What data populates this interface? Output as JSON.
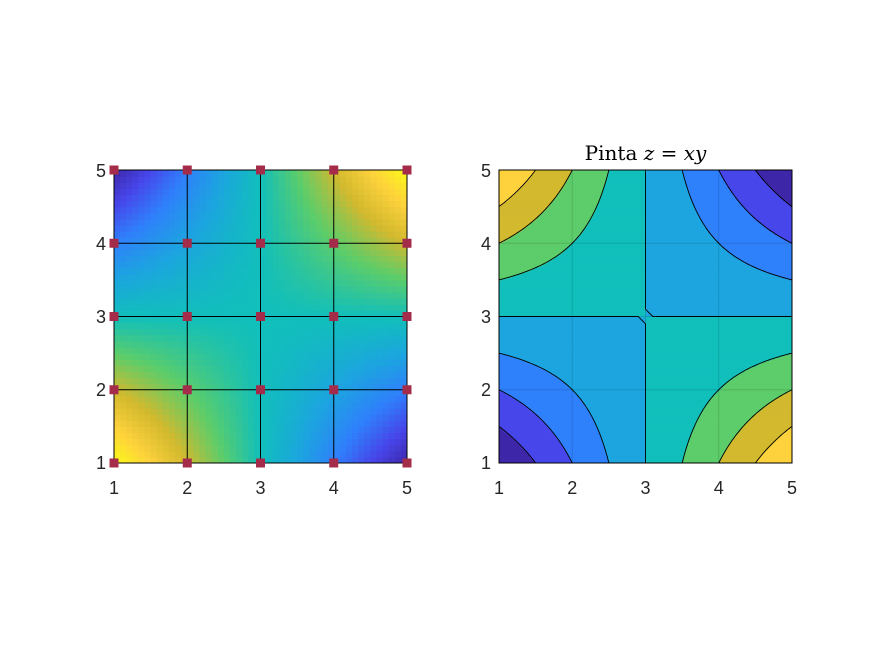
{
  "colors": {
    "colormap": [
      "#3e26a8",
      "#4746ea",
      "#2f80fb",
      "#1ca5df",
      "#11bfbb",
      "#5ccd6a",
      "#d2b92e",
      "#fed23c",
      "#f9fb15"
    ],
    "marker": "#a42c4a",
    "grid_line": "#000000",
    "contour_line": "#000000",
    "axes_frame": "#000000",
    "tick_text": "#262626"
  },
  "chart_data": [
    {
      "type": "heatmap",
      "description_kind": "pcolor-interpolated mesh with markers",
      "title": "",
      "x_ticks": [
        "1",
        "2",
        "3",
        "4",
        "5"
      ],
      "y_ticks": [
        "1",
        "2",
        "3",
        "4",
        "5"
      ],
      "xlim": [
        1,
        5
      ],
      "ylim": [
        1,
        5
      ],
      "grid": true,
      "marker_style": "square",
      "node_values": {
        "x": [
          1,
          2,
          3,
          4,
          5
        ],
        "y": [
          1,
          2,
          3,
          4,
          5
        ],
        "z": [
          [
            1,
            0.5,
            0,
            -0.5,
            -1
          ],
          [
            0.5,
            0.25,
            0,
            -0.25,
            -0.5
          ],
          [
            0,
            0,
            0,
            0,
            0
          ],
          [
            -0.5,
            -0.25,
            0,
            0.25,
            0.5
          ],
          [
            -1,
            -0.5,
            0,
            0.5,
            1
          ]
        ],
        "z_row_order": "rows indexed by y from 1 to 5, columns by x from 1 to 5"
      }
    },
    {
      "type": "heatmap",
      "description_kind": "filled contour",
      "title_prefix": "Pinta ",
      "title_math": "z = xy",
      "x_ticks": [
        "1",
        "2",
        "3",
        "4",
        "5"
      ],
      "y_ticks": [
        "1",
        "2",
        "3",
        "4",
        "5"
      ],
      "xlim": [
        1,
        5
      ],
      "ylim": [
        1,
        5
      ],
      "grid": true,
      "contour_levels": [
        -0.75,
        -0.5,
        -0.25,
        0,
        0.25,
        0.5,
        0.75
      ],
      "field": "z = -(x-3)(y-3)/4"
    }
  ]
}
